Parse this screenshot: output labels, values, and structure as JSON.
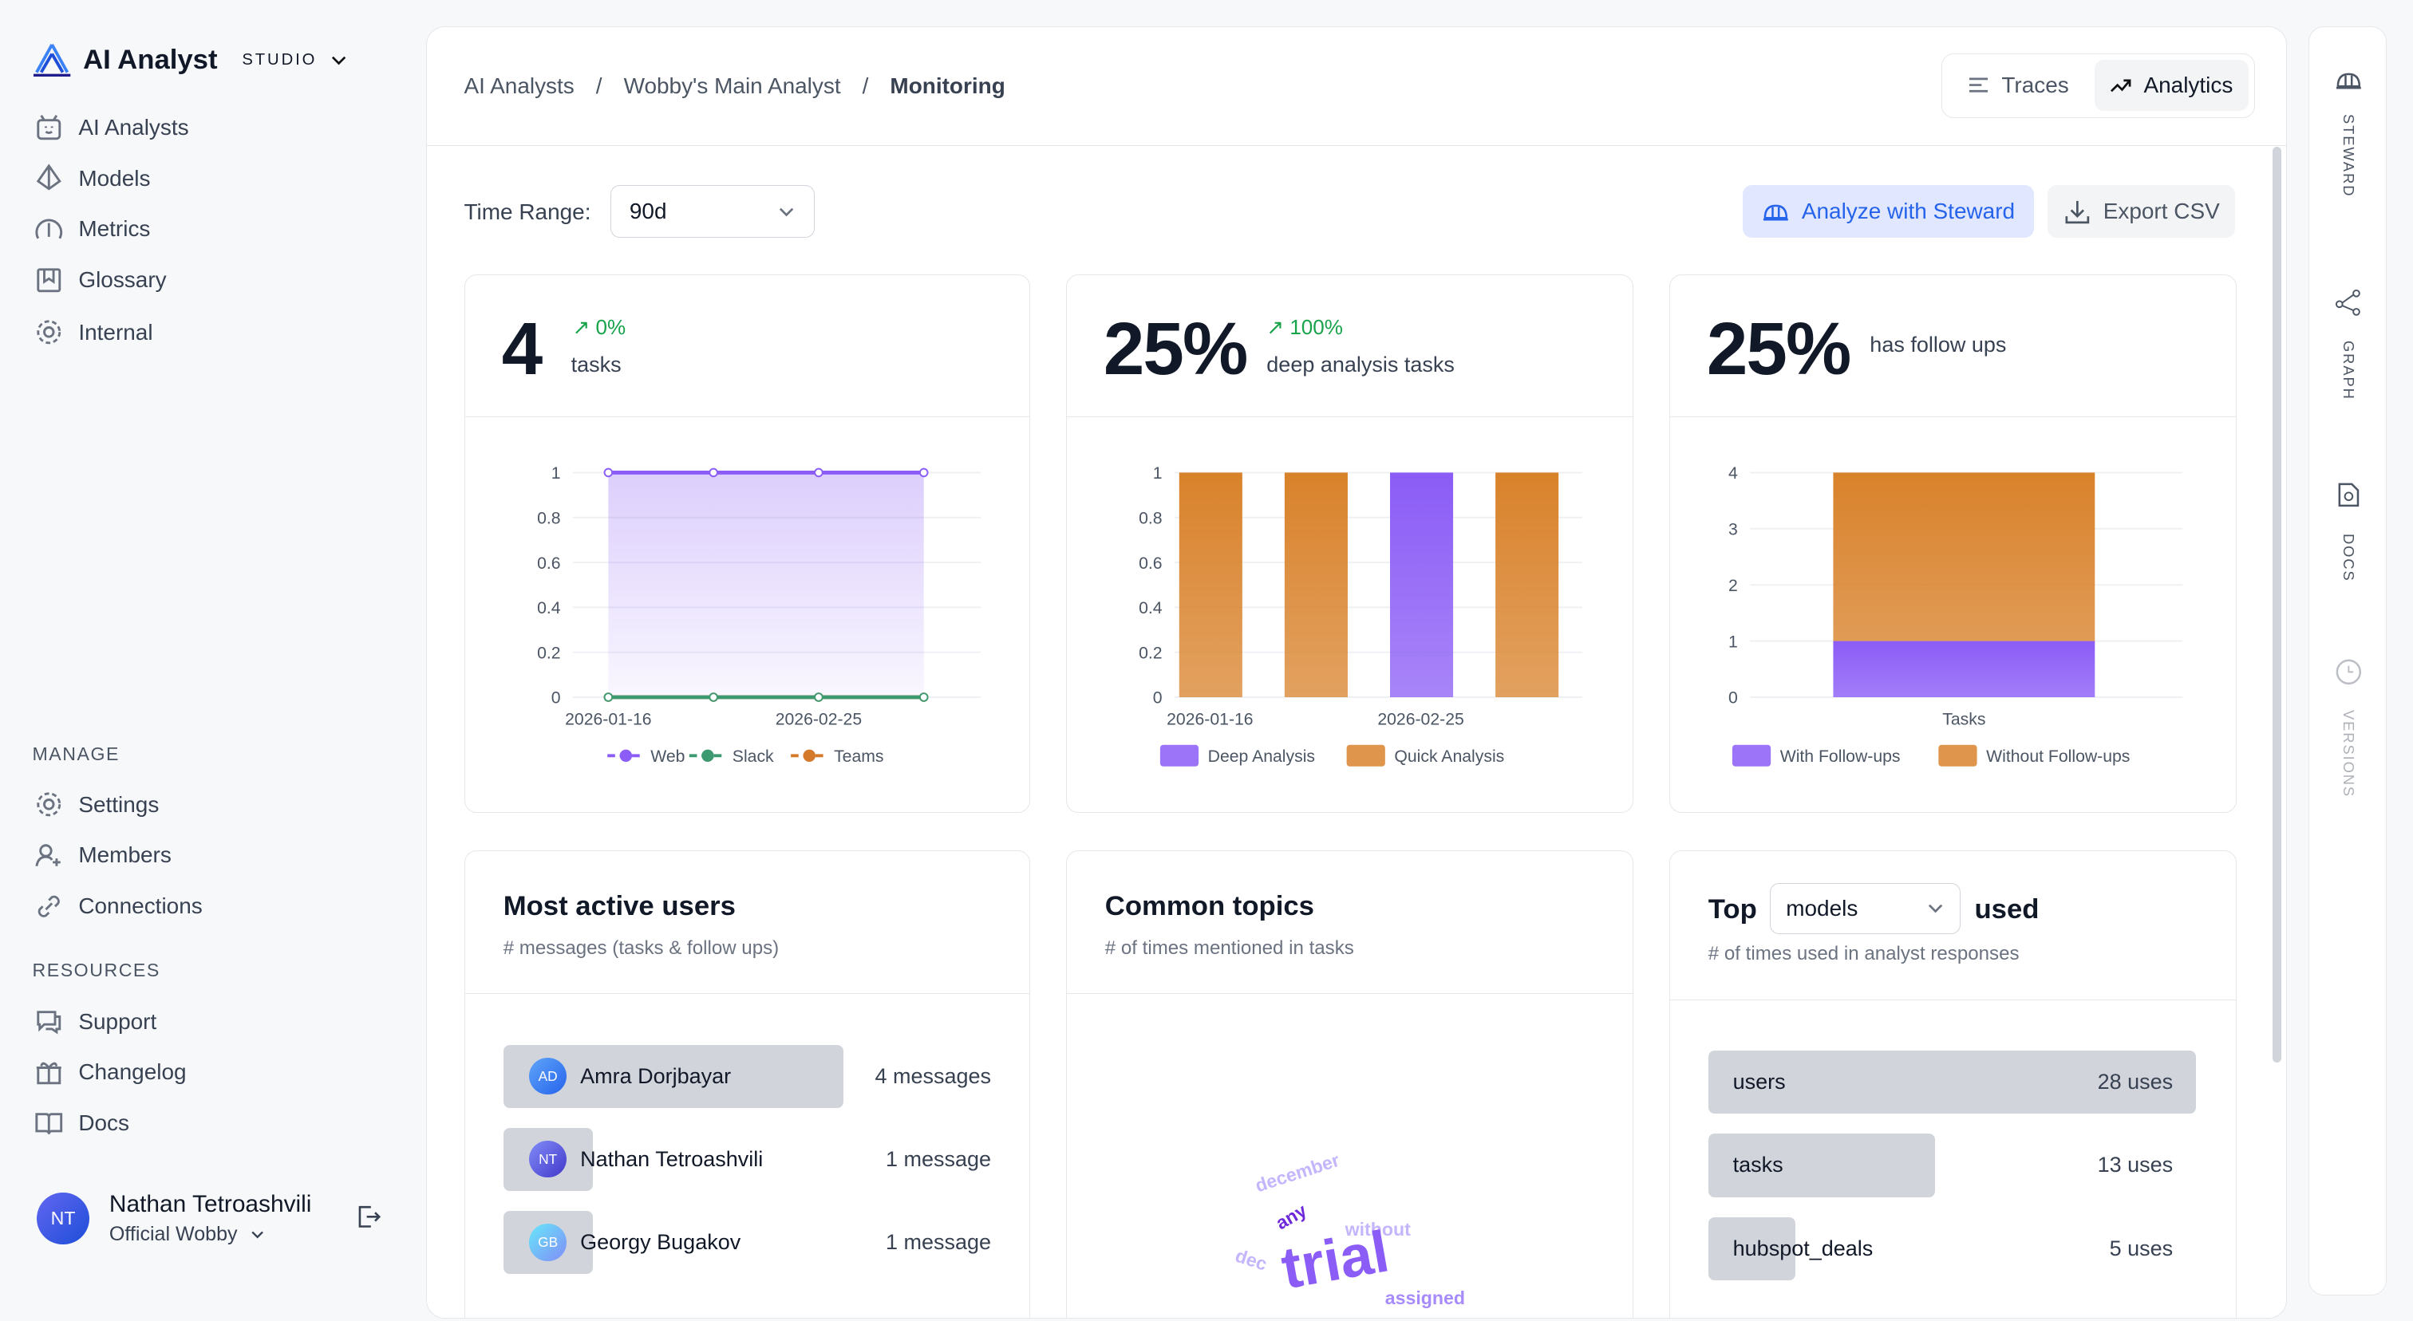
{
  "brand": {
    "name": "AI Analyst",
    "studio": "STUDIO"
  },
  "sidebar": {
    "items": [
      {
        "label": "AI Analysts",
        "icon": "robot-icon"
      },
      {
        "label": "Models",
        "icon": "models-icon"
      },
      {
        "label": "Metrics",
        "icon": "gauge-icon"
      },
      {
        "label": "Glossary",
        "icon": "book-icon"
      },
      {
        "label": "Internal",
        "icon": "gear-icon"
      }
    ],
    "manage_title": "MANAGE",
    "manage": [
      {
        "label": "Settings"
      },
      {
        "label": "Members"
      },
      {
        "label": "Connections"
      }
    ],
    "resources_title": "RESOURCES",
    "resources": [
      {
        "label": "Support"
      },
      {
        "label": "Changelog"
      },
      {
        "label": "Docs"
      }
    ],
    "user": {
      "initials": "NT",
      "name": "Nathan Tetroashvili",
      "org": "Official Wobby"
    }
  },
  "breadcrumb": [
    "AI Analysts",
    "Wobby's Main Analyst",
    "Monitoring"
  ],
  "view_toggle": {
    "traces": "Traces",
    "analytics": "Analytics"
  },
  "toolbar": {
    "time_label": "Time Range:",
    "time_value": "90d",
    "analyze": "Analyze with Steward",
    "export": "Export CSV"
  },
  "rail": [
    "STEWARD",
    "GRAPH",
    "DOCS",
    "VERSIONS"
  ],
  "kpis": [
    {
      "value": "4",
      "trend": "0%",
      "label": "tasks"
    },
    {
      "value": "25%",
      "trend": "100%",
      "label": "deep analysis tasks"
    },
    {
      "value": "25%",
      "label": "has follow ups"
    }
  ],
  "chart_data": [
    {
      "type": "line",
      "x": [
        "2026-01-16",
        "2026-02-05",
        "2026-02-25",
        "2026-03-17"
      ],
      "xticks": [
        "2026-01-16",
        "2026-02-25"
      ],
      "ylim": [
        0,
        1
      ],
      "yticks": [
        "0",
        "0.2",
        "0.4",
        "0.6",
        "0.8",
        "1"
      ],
      "series": [
        {
          "name": "Web",
          "color": "#8b5cf6",
          "values": [
            1,
            1,
            1,
            1
          ]
        },
        {
          "name": "Slack",
          "color": "#3d9970",
          "values": [
            0,
            0,
            0,
            0
          ]
        },
        {
          "name": "Teams",
          "color": "#d4782a",
          "values": [
            0,
            0,
            0,
            0
          ]
        }
      ],
      "legend": "bottom"
    },
    {
      "type": "bar",
      "categories": [
        "2026-01-16",
        "2026-02-05",
        "2026-02-25",
        "2026-03-17"
      ],
      "xticks": [
        "2026-01-16",
        "2026-02-25"
      ],
      "ylim": [
        0,
        1
      ],
      "yticks": [
        "0",
        "0.2",
        "0.4",
        "0.6",
        "0.8",
        "1"
      ],
      "series": [
        {
          "name": "Deep Analysis",
          "color": "#8b5cf6",
          "values": [
            0,
            0,
            1,
            0
          ]
        },
        {
          "name": "Quick Analysis",
          "color": "#d9822b",
          "values": [
            1,
            1,
            0,
            1
          ]
        }
      ],
      "legend": "bottom"
    },
    {
      "type": "bar",
      "stacked": true,
      "categories": [
        "Tasks"
      ],
      "ylim": [
        0,
        4
      ],
      "yticks": [
        "0",
        "1",
        "2",
        "3",
        "4"
      ],
      "series": [
        {
          "name": "With Follow-ups",
          "color": "#8b5cf6",
          "values": [
            1
          ]
        },
        {
          "name": "Without Follow-ups",
          "color": "#d9822b",
          "values": [
            3
          ]
        }
      ],
      "legend": "bottom"
    }
  ],
  "active_users": {
    "title": "Most active users",
    "subtitle": "# messages (tasks & follow ups)",
    "users": [
      {
        "initials": "AD",
        "name": "Amra Dorjbayar",
        "count": "4 messages",
        "value": 4
      },
      {
        "initials": "NT",
        "name": "Nathan Tetroashvili",
        "count": "1 message",
        "value": 1
      },
      {
        "initials": "GB",
        "name": "Georgy Bugakov",
        "count": "1 message",
        "value": 1
      }
    ]
  },
  "topics": {
    "title": "Common topics",
    "subtitle": "# of times mentioned in tasks",
    "words": [
      {
        "text": "december",
        "color": "#c4b5fd"
      },
      {
        "text": "any",
        "color": "#6d28d9"
      },
      {
        "text": "without",
        "color": "#c4b5fd"
      },
      {
        "text": "dec",
        "color": "#c4b5fd"
      },
      {
        "text": "trial",
        "color": "#8b5cf6"
      },
      {
        "text": "assigned",
        "color": "#a78bfa"
      }
    ]
  },
  "top_used": {
    "prefix": "Top",
    "select": "models",
    "suffix": "used",
    "subtitle": "# of times used in analyst responses",
    "items": [
      {
        "name": "users",
        "count": "28 uses",
        "value": 28
      },
      {
        "name": "tasks",
        "count": "13 uses",
        "value": 13
      },
      {
        "name": "hubspot_deals",
        "count": "5 uses",
        "value": 5
      }
    ]
  }
}
